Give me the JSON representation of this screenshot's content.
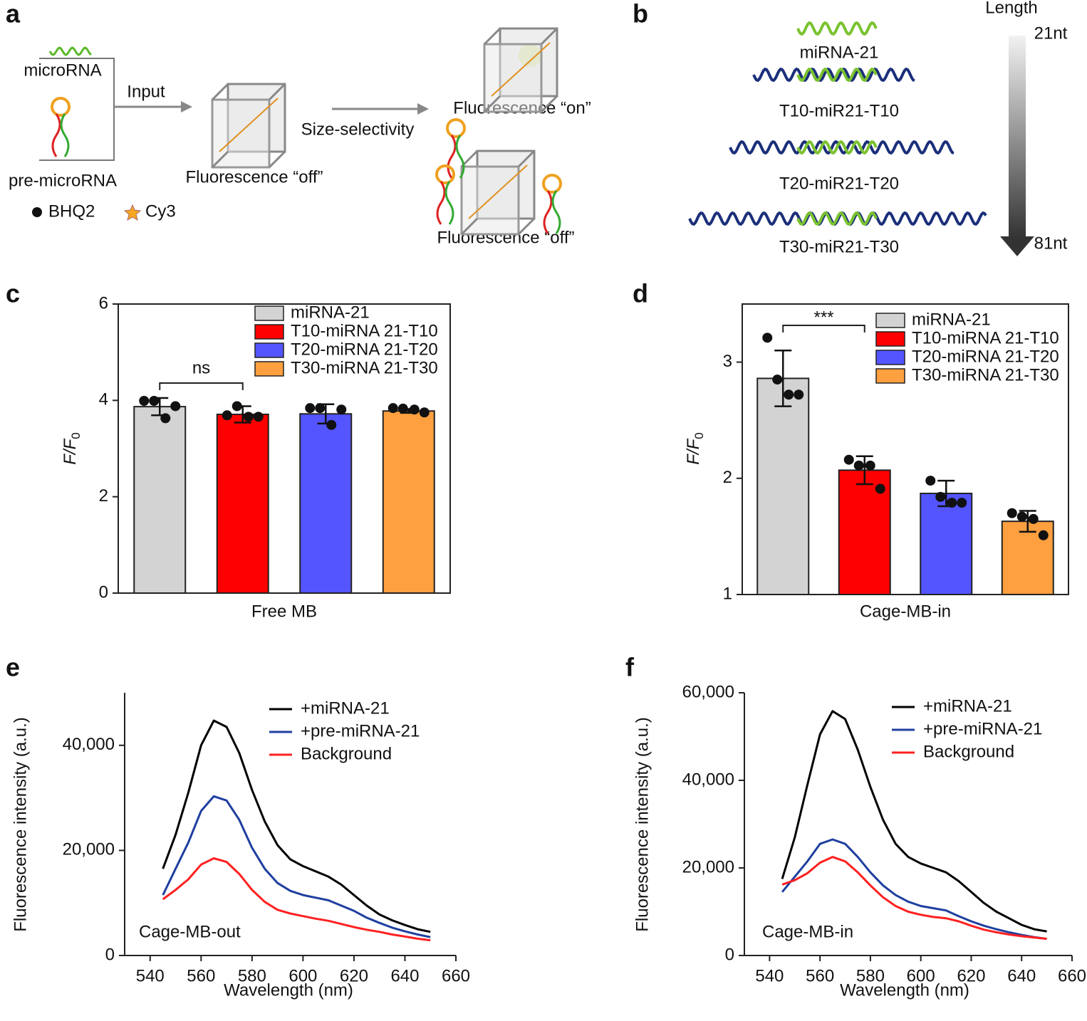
{
  "panel_a": {
    "label": "a",
    "microrna": "microRNA",
    "input": "Input",
    "pre_microrna": "pre-microRNA",
    "off1": "Fluorescence “off”",
    "size_selectivity": "Size-selectivity",
    "on": "Fluorescence “on”",
    "off2": "Fluorescence “off”",
    "bhq2": "BHQ2",
    "cy3": "Cy3"
  },
  "panel_b": {
    "label": "b",
    "length": "Length",
    "top": "21nt",
    "bottom": "81nt",
    "strands": [
      "miRNA-21",
      "T10-miR21-T10",
      "T20-miR21-T20",
      "T30-miR21-T30"
    ]
  },
  "chart_data": [
    {
      "panel": "c",
      "type": "bar",
      "xlabel": "Free MB",
      "ylabel": {
        "main": "F/F",
        "sub": "0"
      },
      "ylim": [
        0,
        6
      ],
      "yticks": [
        0,
        2,
        4,
        6
      ],
      "annotation": "ns",
      "series": [
        {
          "name": "miRNA-21",
          "color": "#d3d3d3",
          "values": [
            3.87
          ],
          "errors": [
            0.18
          ],
          "points": [
            [
              3.99,
              3.99,
              3.63,
              3.88
            ]
          ]
        },
        {
          "name": "T10-miRNA 21-T10",
          "color": "#ff0000",
          "values": [
            3.71
          ],
          "errors": [
            0.17
          ],
          "points": [
            [
              3.69,
              3.88,
              3.66,
              3.66
            ]
          ]
        },
        {
          "name": "T20-miRNA 21-T20",
          "color": "#5555ff",
          "values": [
            3.72
          ],
          "errors": [
            0.2
          ],
          "points": [
            [
              3.84,
              3.84,
              3.49,
              3.81
            ]
          ]
        },
        {
          "name": "T30-miRNA 21-T30",
          "color": "#ffa040",
          "values": [
            3.78
          ],
          "errors": [
            0.04
          ],
          "points": [
            [
              3.84,
              3.83,
              3.81,
              3.75
            ]
          ]
        }
      ]
    },
    {
      "panel": "d",
      "type": "bar",
      "xlabel": "Cage-MB-in",
      "ylabel": {
        "main": "F/F",
        "sub": "0"
      },
      "ylim": [
        1,
        3.5
      ],
      "yticks": [
        1,
        2,
        3
      ],
      "annotation": "***",
      "series": [
        {
          "name": "miRNA-21",
          "color": "#d3d3d3",
          "values": [
            2.86
          ],
          "errors": [
            0.24
          ],
          "points": [
            [
              3.21,
              2.85,
              2.72,
              2.72
            ]
          ]
        },
        {
          "name": "T10-miRNA 21-T10",
          "color": "#ff0000",
          "values": [
            2.07
          ],
          "errors": [
            0.12
          ],
          "points": [
            [
              2.16,
              2.11,
              2.11,
              1.91
            ]
          ]
        },
        {
          "name": "T20-miRNA 21-T20",
          "color": "#5555ff",
          "values": [
            1.87
          ],
          "errors": [
            0.11
          ],
          "points": [
            [
              1.98,
              1.84,
              1.79,
              1.79
            ]
          ]
        },
        {
          "name": "T30-miRNA 21-T30",
          "color": "#ffa040",
          "values": [
            1.63
          ],
          "errors": [
            0.09
          ],
          "points": [
            [
              1.7,
              1.67,
              1.65,
              1.51
            ]
          ]
        }
      ]
    },
    {
      "panel": "e",
      "type": "line",
      "xlabel": "Wavelength (nm)",
      "ylabel": "Fluorescence intensity (a.u.)",
      "annotation": "Cage-MB-out",
      "xlim": [
        530,
        660
      ],
      "xticks": [
        540,
        560,
        580,
        600,
        620,
        640,
        660
      ],
      "ylim": [
        0,
        50000
      ],
      "yticks": [
        0,
        {
          "value": 20000,
          "label": "20,000"
        },
        {
          "value": 40000,
          "label": "40,000"
        }
      ],
      "x": [
        545,
        550,
        555,
        560,
        565,
        570,
        575,
        580,
        585,
        590,
        595,
        600,
        605,
        610,
        615,
        620,
        625,
        630,
        635,
        640,
        645,
        650
      ],
      "series": [
        {
          "name": "+miRNA-21",
          "color": "#000000",
          "values": [
            16500,
            23000,
            31000,
            40000,
            44700,
            43500,
            38500,
            31500,
            25500,
            21000,
            18300,
            17000,
            16000,
            15000,
            13500,
            11500,
            9500,
            7800,
            6700,
            5800,
            5000,
            4500
          ]
        },
        {
          "name": "+pre-miRNA-21",
          "color": "#1f3f9f",
          "values": [
            11500,
            16500,
            21500,
            27500,
            30300,
            29500,
            25800,
            20500,
            16500,
            13800,
            12300,
            11500,
            11000,
            10500,
            9500,
            8500,
            7200,
            6200,
            5300,
            4600,
            4000,
            3500
          ]
        },
        {
          "name": "Background",
          "color": "#ff2020",
          "values": [
            10700,
            12500,
            14500,
            17300,
            18500,
            17800,
            15500,
            12500,
            10200,
            8700,
            8000,
            7500,
            7000,
            6600,
            6000,
            5400,
            4900,
            4500,
            4000,
            3600,
            3200,
            2900
          ]
        }
      ]
    },
    {
      "panel": "f",
      "type": "line",
      "xlabel": "Wavelength (nm)",
      "ylabel": "Fluorescence intensity (a.u.)",
      "annotation": "Cage-MB-in",
      "xlim": [
        530,
        660
      ],
      "xticks": [
        540,
        560,
        580,
        600,
        620,
        640,
        660
      ],
      "ylim": [
        0,
        60000
      ],
      "yticks": [
        0,
        {
          "value": 20000,
          "label": "20,000"
        },
        {
          "value": 40000,
          "label": "40,000"
        },
        {
          "value": 60000,
          "label": "60,000"
        }
      ],
      "x": [
        545,
        550,
        555,
        560,
        565,
        570,
        575,
        580,
        585,
        590,
        595,
        600,
        605,
        610,
        615,
        620,
        625,
        630,
        635,
        640,
        645,
        650
      ],
      "series": [
        {
          "name": "+miRNA-21",
          "color": "#000000",
          "values": [
            17500,
            27000,
            39000,
            50500,
            55800,
            54000,
            47000,
            38500,
            31000,
            25500,
            22500,
            21000,
            20000,
            19000,
            17000,
            14500,
            12000,
            10000,
            8500,
            7000,
            6000,
            5500
          ]
        },
        {
          "name": "+pre-miRNA-21",
          "color": "#1f3f9f",
          "values": [
            14500,
            18000,
            21500,
            25500,
            26500,
            25500,
            22500,
            19000,
            16000,
            13800,
            12300,
            11300,
            10800,
            10300,
            9000,
            7800,
            6800,
            6000,
            5300,
            4700,
            4200,
            3800
          ]
        },
        {
          "name": "Background",
          "color": "#ff2020",
          "values": [
            16200,
            17200,
            18800,
            21200,
            22500,
            21500,
            19000,
            16000,
            13300,
            11300,
            10000,
            9300,
            8800,
            8500,
            7800,
            6800,
            5900,
            5300,
            4800,
            4400,
            4100,
            3800
          ]
        }
      ]
    }
  ]
}
